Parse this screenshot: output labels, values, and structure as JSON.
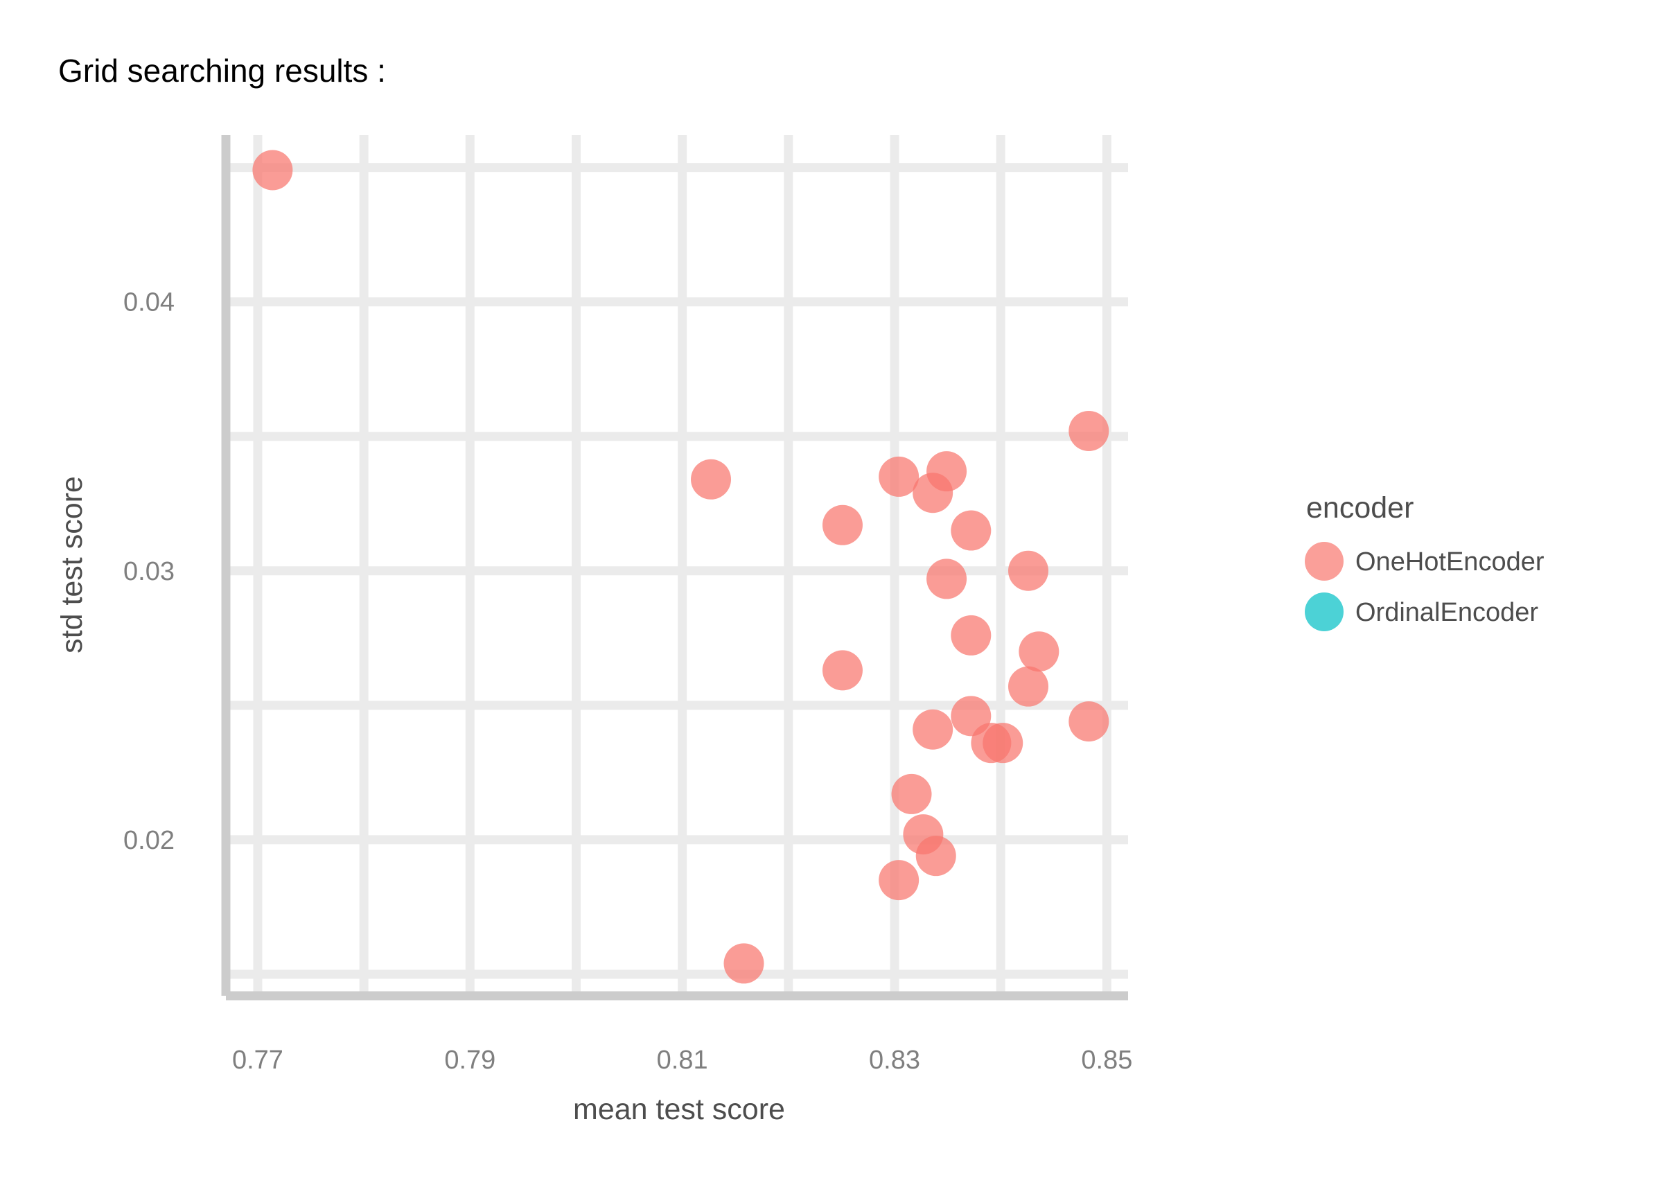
{
  "chart_data": {
    "type": "scatter",
    "title": "Grid searching results :",
    "xlabel": "mean test score",
    "ylabel": "std test score",
    "xlim": [
      0.767,
      0.852
    ],
    "ylim": [
      0.0142,
      0.0462
    ],
    "x_ticks": [
      0.77,
      0.79,
      0.81,
      0.83,
      0.85
    ],
    "x_tick_labels": [
      "0.77",
      "0.79",
      "0.81",
      "0.83",
      "0.85"
    ],
    "x_minor_ticks": [
      0.78,
      0.8,
      0.82,
      0.84
    ],
    "y_ticks": [
      0.02,
      0.03,
      0.04
    ],
    "y_tick_labels": [
      "0.02",
      "0.03",
      "0.04"
    ],
    "y_minor_ticks": [
      0.015,
      0.025,
      0.035,
      0.045
    ],
    "grid": true,
    "legend": {
      "title": "encoder",
      "position": "right",
      "entries": [
        {
          "label": "OneHotEncoder",
          "color": "#F8766D"
        },
        {
          "label": "OrdinalEncoder",
          "color": "#00BFC4"
        }
      ]
    },
    "series": [
      {
        "name": "OneHotEncoder",
        "color": "#F8766D",
        "points": [
          {
            "x": 0.7714,
            "y": 0.0449
          },
          {
            "x": 0.8127,
            "y": 0.0334
          },
          {
            "x": 0.8251,
            "y": 0.0317
          },
          {
            "x": 0.8251,
            "y": 0.0263
          },
          {
            "x": 0.8158,
            "y": 0.0154
          },
          {
            "x": 0.8304,
            "y": 0.0335
          },
          {
            "x": 0.8349,
            "y": 0.0337
          },
          {
            "x": 0.8336,
            "y": 0.0329
          },
          {
            "x": 0.8372,
            "y": 0.0315
          },
          {
            "x": 0.8349,
            "y": 0.0297
          },
          {
            "x": 0.8426,
            "y": 0.03
          },
          {
            "x": 0.8372,
            "y": 0.0276
          },
          {
            "x": 0.8436,
            "y": 0.027
          },
          {
            "x": 0.8426,
            "y": 0.0257
          },
          {
            "x": 0.8372,
            "y": 0.0246
          },
          {
            "x": 0.8336,
            "y": 0.0241
          },
          {
            "x": 0.8391,
            "y": 0.0236
          },
          {
            "x": 0.8402,
            "y": 0.0236
          },
          {
            "x": 0.8483,
            "y": 0.0244
          },
          {
            "x": 0.8483,
            "y": 0.0352
          },
          {
            "x": 0.8316,
            "y": 0.0217
          },
          {
            "x": 0.8327,
            "y": 0.0202
          },
          {
            "x": 0.8339,
            "y": 0.0194
          },
          {
            "x": 0.8304,
            "y": 0.0185
          }
        ]
      },
      {
        "name": "OrdinalEncoder",
        "color": "#00BFC4",
        "points": []
      }
    ]
  }
}
